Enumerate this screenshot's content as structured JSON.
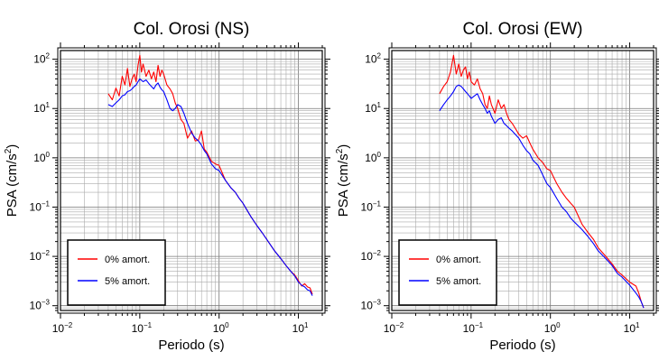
{
  "chart_data": [
    {
      "type": "line",
      "title": "Col. Orosi (NS)",
      "xlabel": "Periodo (s)",
      "ylabel_prefix": "PSA (cm/s",
      "ylabel_sup": "2",
      "ylabel_suffix": ")",
      "xscale": "log",
      "yscale": "log",
      "xlim": [
        0.01,
        20
      ],
      "ylim": [
        0.0008,
        150
      ],
      "grid": true,
      "legend_position": "bottom-left",
      "xticks": [
        {
          "base": "10",
          "exp": "−2"
        },
        {
          "base": "10",
          "exp": "−1"
        },
        {
          "base": "10",
          "exp": "0"
        },
        {
          "base": "10",
          "exp": "1"
        }
      ],
      "yticks": [
        {
          "base": "10",
          "exp": "2"
        },
        {
          "base": "10",
          "exp": "1"
        },
        {
          "base": "10",
          "exp": "0"
        },
        {
          "base": "10",
          "exp": "−1"
        },
        {
          "base": "10",
          "exp": "−2"
        },
        {
          "base": "10",
          "exp": "−3"
        }
      ],
      "series": [
        {
          "name": "0% amort.",
          "color": "#ff0000",
          "x": [
            0.04,
            0.045,
            0.05,
            0.055,
            0.06,
            0.065,
            0.07,
            0.075,
            0.08,
            0.085,
            0.09,
            0.095,
            0.1,
            0.105,
            0.11,
            0.12,
            0.13,
            0.14,
            0.15,
            0.16,
            0.17,
            0.18,
            0.19,
            0.2,
            0.22,
            0.24,
            0.26,
            0.28,
            0.3,
            0.33,
            0.36,
            0.4,
            0.45,
            0.5,
            0.55,
            0.6,
            0.65,
            0.7,
            0.8,
            0.9,
            1.0,
            1.2,
            1.4,
            1.6,
            1.8,
            2.0,
            2.5,
            3.0,
            3.5,
            4.0,
            5.0,
            6.0,
            7.0,
            8.0,
            9.0,
            10.0,
            11.0,
            12.0,
            13.0,
            14.0,
            15.0
          ],
          "y": [
            20,
            15,
            26,
            18,
            45,
            30,
            65,
            28,
            40,
            50,
            35,
            75,
            120,
            55,
            80,
            45,
            60,
            40,
            55,
            35,
            75,
            45,
            60,
            50,
            30,
            25,
            20,
            13,
            10,
            6,
            5,
            2.5,
            3.5,
            2.2,
            2.3,
            3.5,
            1.5,
            1.3,
            0.85,
            0.75,
            0.7,
            0.35,
            0.25,
            0.2,
            0.15,
            0.12,
            0.065,
            0.042,
            0.03,
            0.022,
            0.013,
            0.009,
            0.0065,
            0.005,
            0.0042,
            0.0032,
            0.0025,
            0.0028,
            0.0024,
            0.0023,
            0.0017
          ]
        },
        {
          "name": "5% amort.",
          "color": "#0000ff",
          "x": [
            0.04,
            0.045,
            0.05,
            0.055,
            0.06,
            0.065,
            0.07,
            0.075,
            0.08,
            0.085,
            0.09,
            0.095,
            0.1,
            0.11,
            0.12,
            0.13,
            0.14,
            0.15,
            0.16,
            0.17,
            0.18,
            0.19,
            0.2,
            0.22,
            0.24,
            0.26,
            0.28,
            0.3,
            0.33,
            0.36,
            0.4,
            0.45,
            0.5,
            0.55,
            0.6,
            0.65,
            0.7,
            0.8,
            0.9,
            1.0,
            1.2,
            1.4,
            1.6,
            1.8,
            2.0,
            2.5,
            3.0,
            3.5,
            4.0,
            5.0,
            6.0,
            7.0,
            8.0,
            9.0,
            10.0,
            11.0,
            12.0,
            13.0,
            14.0,
            15.0
          ],
          "y": [
            12,
            11,
            13,
            15,
            18,
            19,
            22,
            23,
            25,
            28,
            30,
            35,
            40,
            35,
            38,
            32,
            28,
            25,
            30,
            33,
            27,
            24,
            22,
            15,
            10,
            9,
            10,
            12,
            11,
            8,
            5,
            3.2,
            2.5,
            2.2,
            1.8,
            1.4,
            1.2,
            0.75,
            0.6,
            0.55,
            0.35,
            0.25,
            0.2,
            0.15,
            0.12,
            0.065,
            0.042,
            0.03,
            0.022,
            0.013,
            0.009,
            0.0065,
            0.005,
            0.004,
            0.003,
            0.0026,
            0.0024,
            0.0021,
            0.002,
            0.0016
          ]
        }
      ]
    },
    {
      "type": "line",
      "title": "Col. Orosi (EW)",
      "xlabel": "Periodo (s)",
      "ylabel_prefix": "PSA (cm/s",
      "ylabel_sup": "2",
      "ylabel_suffix": ")",
      "xscale": "log",
      "yscale": "log",
      "xlim": [
        0.01,
        20
      ],
      "ylim": [
        0.0008,
        150
      ],
      "grid": true,
      "legend_position": "bottom-left",
      "xticks": [
        {
          "base": "10",
          "exp": "−2"
        },
        {
          "base": "10",
          "exp": "−1"
        },
        {
          "base": "10",
          "exp": "0"
        },
        {
          "base": "10",
          "exp": "1"
        }
      ],
      "yticks": [
        {
          "base": "10",
          "exp": "2"
        },
        {
          "base": "10",
          "exp": "1"
        },
        {
          "base": "10",
          "exp": "0"
        },
        {
          "base": "10",
          "exp": "−1"
        },
        {
          "base": "10",
          "exp": "−2"
        },
        {
          "base": "10",
          "exp": "−3"
        }
      ],
      "series": [
        {
          "name": "0% amort.",
          "color": "#ff0000",
          "x": [
            0.04,
            0.045,
            0.05,
            0.055,
            0.06,
            0.065,
            0.07,
            0.075,
            0.08,
            0.085,
            0.09,
            0.095,
            0.1,
            0.11,
            0.12,
            0.13,
            0.14,
            0.15,
            0.16,
            0.17,
            0.18,
            0.2,
            0.22,
            0.24,
            0.26,
            0.28,
            0.3,
            0.33,
            0.36,
            0.4,
            0.45,
            0.5,
            0.55,
            0.6,
            0.7,
            0.8,
            0.9,
            1.0,
            1.2,
            1.4,
            1.6,
            1.8,
            2.0,
            2.5,
            3.0,
            3.5,
            4.0,
            5.0,
            6.0,
            7.0,
            8.0,
            10.0,
            12.0,
            13.0,
            14.0,
            15.0
          ],
          "y": [
            20,
            28,
            35,
            55,
            120,
            50,
            80,
            45,
            60,
            70,
            40,
            55,
            35,
            30,
            40,
            25,
            20,
            12,
            10,
            18,
            12,
            8,
            15,
            10,
            12,
            8,
            6,
            5,
            4,
            3,
            2.5,
            2.8,
            2.0,
            1.5,
            1.0,
            0.8,
            0.6,
            0.55,
            0.3,
            0.2,
            0.15,
            0.12,
            0.1,
            0.045,
            0.03,
            0.022,
            0.015,
            0.01,
            0.007,
            0.005,
            0.0042,
            0.003,
            0.0025,
            0.0018,
            0.0012,
            0.0009
          ]
        },
        {
          "name": "5% amort.",
          "color": "#0000ff",
          "x": [
            0.04,
            0.045,
            0.05,
            0.055,
            0.06,
            0.065,
            0.07,
            0.075,
            0.08,
            0.085,
            0.09,
            0.095,
            0.1,
            0.11,
            0.12,
            0.13,
            0.14,
            0.15,
            0.16,
            0.17,
            0.18,
            0.2,
            0.22,
            0.24,
            0.26,
            0.28,
            0.3,
            0.33,
            0.36,
            0.4,
            0.45,
            0.5,
            0.55,
            0.6,
            0.7,
            0.8,
            0.9,
            1.0,
            1.2,
            1.4,
            1.6,
            1.8,
            2.0,
            2.5,
            3.0,
            3.5,
            4.0,
            5.0,
            6.0,
            7.0,
            8.0,
            10.0,
            12.0,
            13.0,
            14.0,
            15.0
          ],
          "y": [
            9,
            12,
            15,
            18,
            22,
            28,
            30,
            28,
            25,
            22,
            20,
            18,
            16,
            18,
            20,
            15,
            12,
            10,
            8,
            9,
            7,
            5,
            6,
            6.5,
            5,
            4.5,
            4,
            3.5,
            3,
            2.5,
            1.8,
            1.4,
            1.2,
            0.9,
            0.7,
            0.45,
            0.3,
            0.25,
            0.15,
            0.1,
            0.08,
            0.06,
            0.05,
            0.035,
            0.025,
            0.018,
            0.013,
            0.009,
            0.0065,
            0.0045,
            0.0038,
            0.0026,
            0.0018,
            0.0015,
            0.0012,
            0.0009
          ]
        }
      ]
    }
  ]
}
